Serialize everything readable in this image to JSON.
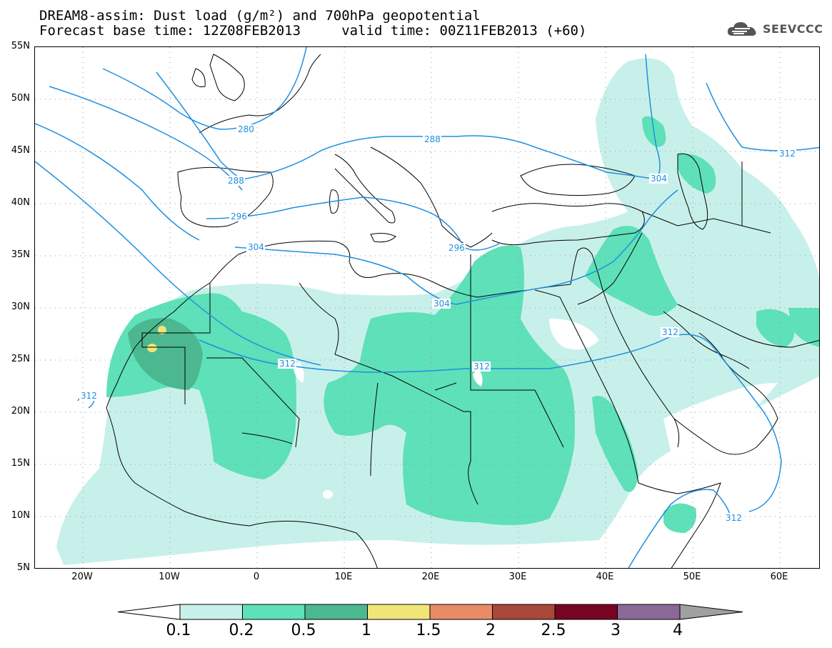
{
  "title": {
    "line1": "DREAM8-assim: Dust load (g/m²) and 700hPa geopotential",
    "line2": "Forecast base time: 12Z08FEB2013     valid time: 00Z11FEB2013 (+60)"
  },
  "logo_text": "SEEVCCC",
  "map": {
    "lat_labels": [
      "55N",
      "50N",
      "45N",
      "40N",
      "35N",
      "30N",
      "25N",
      "20N",
      "15N",
      "10N",
      "5N"
    ],
    "lon_labels": [
      "20W",
      "10W",
      "0",
      "10E",
      "20E",
      "30E",
      "40E",
      "50E",
      "60E"
    ],
    "contour_labels": [
      "280",
      "288",
      "288",
      "296",
      "296",
      "304",
      "304",
      "304",
      "312",
      "312",
      "312",
      "312",
      "312",
      "312"
    ],
    "colors": {
      "contour": "#1e90e0",
      "border": "#000000",
      "grid": "#999999"
    }
  },
  "colorbar": {
    "labels": [
      "0.1",
      "0.2",
      "0.5",
      "1",
      "1.5",
      "2",
      "2.5",
      "3",
      "4"
    ],
    "colors": [
      "#c8f0ea",
      "#5ee0b8",
      "#4cb890",
      "#f0e678",
      "#e88c68",
      "#a84838",
      "#780424",
      "#8a6898"
    ],
    "over_color": "#a0a0a0",
    "under_color": "#ffffff"
  }
}
